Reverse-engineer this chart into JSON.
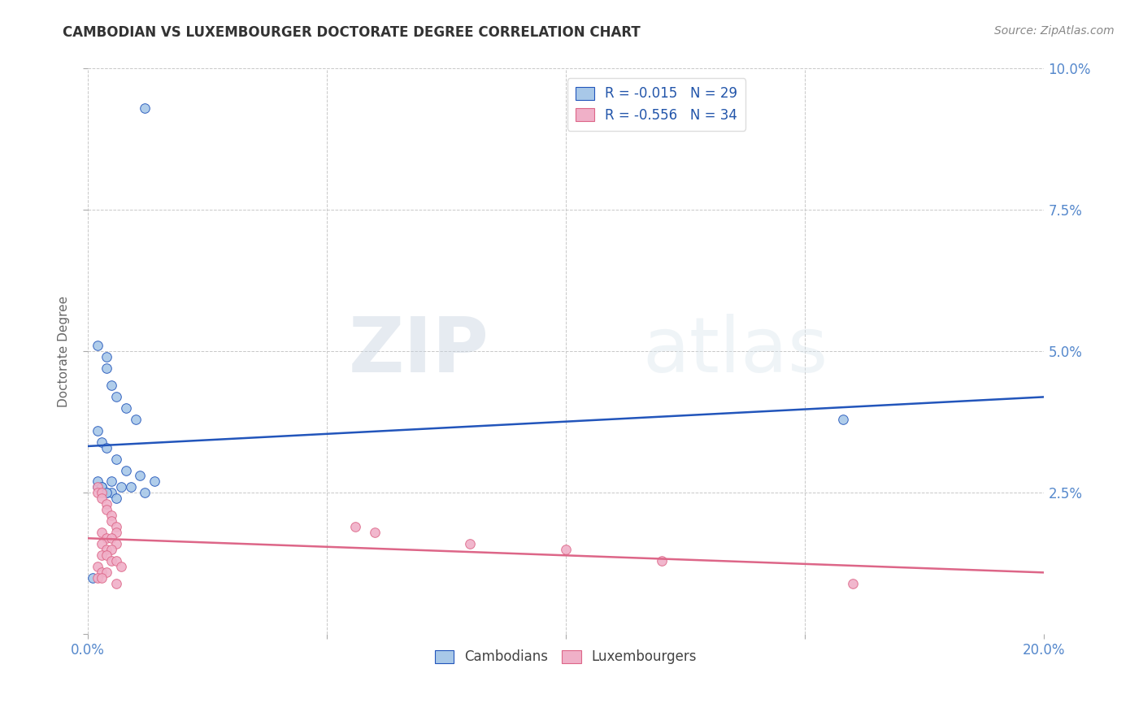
{
  "title": "CAMBODIAN VS LUXEMBOURGER DOCTORATE DEGREE CORRELATION CHART",
  "source": "Source: ZipAtlas.com",
  "ylabel": "Doctorate Degree",
  "xlim": [
    0.0,
    0.2
  ],
  "ylim": [
    0.0,
    0.1
  ],
  "xticks": [
    0.0,
    0.05,
    0.1,
    0.15,
    0.2
  ],
  "yticks": [
    0.0,
    0.025,
    0.05,
    0.075,
    0.1
  ],
  "background_color": "#ffffff",
  "grid_color": "#c8c8c8",
  "watermark_zip": "ZIP",
  "watermark_atlas": "atlas",
  "legend_r1": "-0.015",
  "legend_n1": "29",
  "legend_r2": "-0.556",
  "legend_n2": "34",
  "cambodian_color": "#a8c8e8",
  "luxembourger_color": "#f0b0c8",
  "line_cambodian_color": "#2255bb",
  "line_luxembourger_color": "#dd6688",
  "cambodian_x": [
    0.012,
    0.002,
    0.004,
    0.004,
    0.005,
    0.006,
    0.008,
    0.01,
    0.002,
    0.003,
    0.004,
    0.006,
    0.008,
    0.011,
    0.014,
    0.002,
    0.003,
    0.004,
    0.005,
    0.006,
    0.002,
    0.003,
    0.004,
    0.005,
    0.007,
    0.009,
    0.012,
    0.158,
    0.001
  ],
  "cambodian_y": [
    0.093,
    0.051,
    0.049,
    0.047,
    0.044,
    0.042,
    0.04,
    0.038,
    0.036,
    0.034,
    0.033,
    0.031,
    0.029,
    0.028,
    0.027,
    0.026,
    0.026,
    0.025,
    0.025,
    0.024,
    0.027,
    0.026,
    0.025,
    0.027,
    0.026,
    0.026,
    0.025,
    0.038,
    0.01
  ],
  "luxembourger_x": [
    0.002,
    0.002,
    0.003,
    0.003,
    0.004,
    0.004,
    0.005,
    0.005,
    0.006,
    0.006,
    0.003,
    0.004,
    0.005,
    0.006,
    0.003,
    0.004,
    0.005,
    0.003,
    0.004,
    0.005,
    0.006,
    0.007,
    0.002,
    0.003,
    0.004,
    0.002,
    0.003,
    0.006,
    0.056,
    0.06,
    0.08,
    0.1,
    0.12,
    0.16
  ],
  "luxembourger_y": [
    0.026,
    0.025,
    0.025,
    0.024,
    0.023,
    0.022,
    0.021,
    0.02,
    0.019,
    0.018,
    0.018,
    0.017,
    0.017,
    0.016,
    0.016,
    0.015,
    0.015,
    0.014,
    0.014,
    0.013,
    0.013,
    0.012,
    0.012,
    0.011,
    0.011,
    0.01,
    0.01,
    0.009,
    0.019,
    0.018,
    0.016,
    0.015,
    0.013,
    0.009
  ],
  "marker_size": 70,
  "title_fontsize": 12,
  "tick_fontsize": 12,
  "legend_fontsize": 12
}
